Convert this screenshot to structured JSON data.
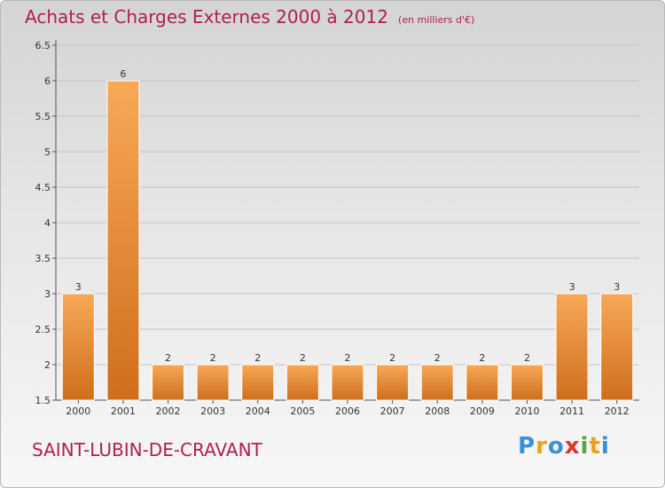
{
  "title": "Achats et Charges Externes 2000 à 2012",
  "unit_note": "(en milliers d'€)",
  "commune": "SAINT-LUBIN-DE-CRAVANT",
  "logo": {
    "letters": [
      "P",
      "r",
      "o",
      "x",
      "i",
      "t",
      "i"
    ],
    "colors": [
      "#3a8fd6",
      "#e8a317",
      "#3a8fd6",
      "#d83a2c",
      "#5aa83b",
      "#e8a317",
      "#3a8fd6"
    ]
  },
  "colors": {
    "bar_top": "#f7a958",
    "bar_bottom": "#cf6e1c",
    "accent_text": "#b0204a"
  },
  "chart_data": {
    "type": "bar",
    "categories": [
      "2000",
      "2001",
      "2002",
      "2003",
      "2004",
      "2005",
      "2006",
      "2007",
      "2008",
      "2009",
      "2010",
      "2011",
      "2012"
    ],
    "values": [
      3,
      6,
      2,
      2,
      2,
      2,
      2,
      2,
      2,
      2,
      2,
      3,
      3
    ],
    "data_labels": [
      "3",
      "6",
      "2",
      "2",
      "2",
      "2",
      "2",
      "2",
      "2",
      "2",
      "2",
      "3",
      "3"
    ],
    "ylim": [
      1.5,
      6.5
    ],
    "yticks": [
      "1.5",
      "2",
      "2.5",
      "3",
      "3.5",
      "4",
      "4.5",
      "5",
      "5.5",
      "6",
      "6.5"
    ],
    "grid": true,
    "xlabel": "",
    "ylabel": ""
  }
}
